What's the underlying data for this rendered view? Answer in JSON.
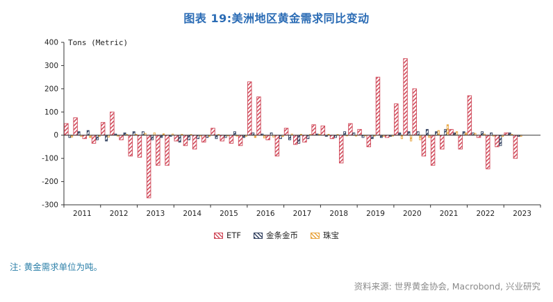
{
  "title": "图表 19:美洲地区黄金需求同比变动",
  "footnote": "注: 黄金需求单位为吨。",
  "source": "资料来源: 世界黄金协会, Macrobond, 兴业研究",
  "chart_data": {
    "type": "bar",
    "title": "图表 19:美洲地区黄金需求同比变动",
    "axis_label": "Tons (Metric)",
    "xlabel": "",
    "ylabel": "Tons (Metric)",
    "ylim": [
      -300,
      400
    ],
    "yticks": [
      -300,
      -200,
      -100,
      0,
      100,
      200,
      300,
      400
    ],
    "grid": false,
    "legend_position": "bottom",
    "x_year_labels": [
      "2011",
      "2012",
      "2013",
      "2014",
      "2015",
      "2016",
      "2017",
      "2018",
      "2019",
      "2020",
      "2021",
      "2022",
      "2023"
    ],
    "x": [
      "2011Q1",
      "2011Q2",
      "2011Q3",
      "2011Q4",
      "2012Q1",
      "2012Q2",
      "2012Q3",
      "2012Q4",
      "2013Q1",
      "2013Q2",
      "2013Q3",
      "2013Q4",
      "2014Q1",
      "2014Q2",
      "2014Q3",
      "2014Q4",
      "2015Q1",
      "2015Q2",
      "2015Q3",
      "2015Q4",
      "2016Q1",
      "2016Q2",
      "2016Q3",
      "2016Q4",
      "2017Q1",
      "2017Q2",
      "2017Q3",
      "2017Q4",
      "2018Q1",
      "2018Q2",
      "2018Q3",
      "2018Q4",
      "2019Q1",
      "2019Q2",
      "2019Q3",
      "2019Q4",
      "2020Q1",
      "2020Q2",
      "2020Q3",
      "2020Q4",
      "2021Q1",
      "2021Q2",
      "2021Q3",
      "2021Q4",
      "2022Q1",
      "2022Q2",
      "2022Q3",
      "2022Q4",
      "2023Q1",
      "2023Q2",
      "2023Q3",
      "2023Q4"
    ],
    "series": [
      {
        "name": "ETF",
        "color": "#d04a5a",
        "values": [
          50,
          75,
          -15,
          -35,
          55,
          100,
          -20,
          -90,
          -95,
          -270,
          -130,
          -130,
          -25,
          -45,
          -60,
          -30,
          30,
          -25,
          -35,
          -45,
          230,
          165,
          -20,
          -90,
          30,
          -40,
          -30,
          45,
          40,
          -15,
          -120,
          50,
          25,
          -50,
          250,
          -10,
          135,
          330,
          200,
          -90,
          -130,
          -60,
          25,
          -60,
          170,
          -10,
          -145,
          -50,
          10,
          -100,
          null,
          null
        ]
      },
      {
        "name": "金条金币",
        "color": "#303f5e",
        "values": [
          -10,
          15,
          20,
          -20,
          -25,
          5,
          10,
          15,
          15,
          -20,
          -10,
          -5,
          -30,
          -20,
          -15,
          -10,
          -15,
          -10,
          15,
          -10,
          10,
          5,
          10,
          -15,
          -20,
          -35,
          -15,
          5,
          -5,
          -10,
          15,
          10,
          -10,
          -15,
          -10,
          -5,
          10,
          15,
          15,
          25,
          15,
          25,
          10,
          15,
          10,
          15,
          10,
          -45,
          10,
          -5,
          null,
          null
        ]
      },
      {
        "name": "珠宝",
        "color": "#e8a33d",
        "values": [
          -8,
          -5,
          -10,
          -5,
          -8,
          -4,
          3,
          4,
          8,
          10,
          6,
          5,
          4,
          3,
          -4,
          -5,
          3,
          -3,
          -4,
          -5,
          -10,
          -12,
          -8,
          -6,
          5,
          4,
          3,
          4,
          4,
          3,
          -3,
          -4,
          -3,
          -4,
          -5,
          -4,
          -15,
          -25,
          -20,
          -10,
          20,
          45,
          15,
          10,
          8,
          5,
          -4,
          -6,
          4,
          -5,
          null,
          null
        ]
      }
    ]
  }
}
